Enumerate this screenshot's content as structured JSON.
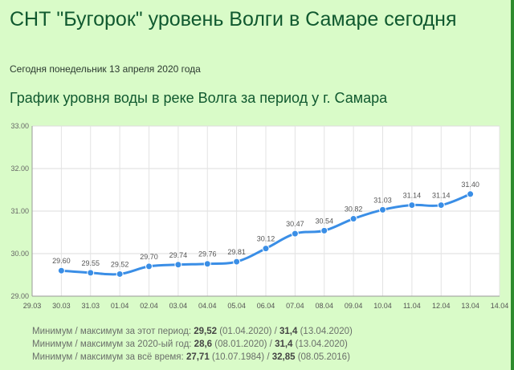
{
  "header": {
    "title": "СНТ \"Бугорок\" уровень Волги в Самаре сегодня",
    "date_line": "Сегодня понедельник 13 апреля 2020 года",
    "subtitle": "График уровня воды в реке Волга за период у г. Самара"
  },
  "chart_data": {
    "type": "line",
    "x": [
      "30.03",
      "31.03",
      "01.04",
      "02.04",
      "03.04",
      "04.04",
      "05.04",
      "06.04",
      "07.04",
      "08.04",
      "09.04",
      "10.04",
      "11.04",
      "12.04",
      "13.04"
    ],
    "values": [
      29.6,
      29.55,
      29.52,
      29.7,
      29.74,
      29.76,
      29.81,
      30.12,
      30.47,
      30.54,
      30.82,
      31.03,
      31.14,
      31.14,
      31.4
    ],
    "value_labels": [
      "29.60",
      "29.55",
      "29.52",
      "29.70",
      "29.74",
      "29.76",
      "29.81",
      "30.12",
      "30.47",
      "30.54",
      "30.82",
      "31.03",
      "31.14",
      "31.14",
      "31.40"
    ],
    "x_ticks": [
      "29.03",
      "30.03",
      "31.03",
      "01.04",
      "02.04",
      "03.04",
      "04.04",
      "05.04",
      "06.04",
      "07.04",
      "08.04",
      "09.04",
      "10.04",
      "11.04",
      "12.04",
      "13.04",
      "14.04"
    ],
    "y_ticks": [
      "29.00",
      "30.00",
      "31.00",
      "32.00",
      "33.00"
    ],
    "ylim": [
      29,
      33
    ],
    "grid": true,
    "color": "#3a8ee6",
    "title": "",
    "xlabel": "",
    "ylabel": ""
  },
  "stats": [
    {
      "prefix": "Минимум / максимум за этот период: ",
      "min": "29,52",
      "min_date": " (01.04.2020) / ",
      "max": "31,4",
      "max_date": " (13.04.2020)"
    },
    {
      "prefix": "Минимум / максимум за 2020-ый год: ",
      "min": "28,6",
      "min_date": " (08.01.2020) / ",
      "max": "31,4",
      "max_date": " (13.04.2020)"
    },
    {
      "prefix": "Минимум / максимум  за  всё  время: ",
      "min": "27,71",
      "min_date": " (10.07.1984) / ",
      "max": "32,85",
      "max_date": " (08.05.2016)"
    }
  ]
}
